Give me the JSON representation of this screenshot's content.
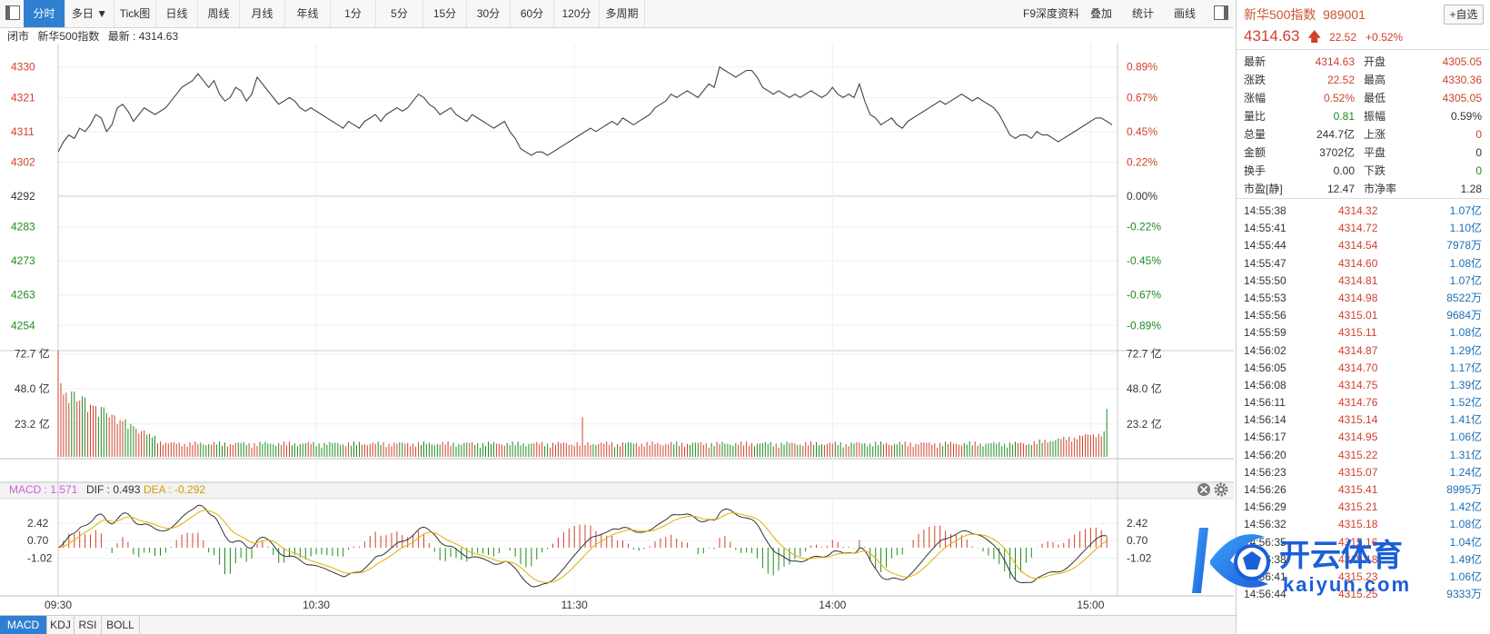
{
  "toolbar": {
    "items": [
      "分时",
      "多日 ▼",
      "Tick图",
      "日线",
      "周线",
      "月线",
      "年线",
      "1分",
      "5分",
      "15分",
      "30分",
      "60分",
      "120分",
      "多周期"
    ],
    "right_items": [
      "F9深度资料",
      "叠加",
      "统计",
      "画线"
    ]
  },
  "infobar": {
    "status": "闭市",
    "name": "新华500指数",
    "latest_label": "最新 : 4314.63"
  },
  "macd_legend": {
    "macd": "MACD : 1.571",
    "dif": "DIF : 0.493",
    "dea": "DEA : -0.292"
  },
  "bottom_tabs": [
    "MACD",
    "KDJ",
    "RSI",
    "BOLL"
  ],
  "quote": {
    "title": "新华500指数",
    "code": "989001",
    "add_label": "+自选",
    "price": "4314.63",
    "arrow": "🡅",
    "change": "22.52",
    "change_pct": "+0.52%",
    "rows": [
      {
        "l": "最新",
        "v": "4314.63",
        "vc": "red",
        "l2": "开盘",
        "v2": "4305.05",
        "v2c": "red"
      },
      {
        "l": "涨跌",
        "v": "22.52",
        "vc": "red",
        "l2": "最高",
        "v2": "4330.36",
        "v2c": "red"
      },
      {
        "l": "涨幅",
        "v": "0.52%",
        "vc": "red",
        "l2": "最低",
        "v2": "4305.05",
        "v2c": "red"
      },
      {
        "l": "量比",
        "v": "0.81",
        "vc": "green",
        "l2": "振幅",
        "v2": "0.59%",
        "v2c": "black"
      },
      {
        "l": "总量",
        "v": "244.7亿",
        "vc": "black",
        "l2": "上涨",
        "v2": "0",
        "v2c": "red"
      },
      {
        "l": "金额",
        "v": "3702亿",
        "vc": "black",
        "l2": "平盘",
        "v2": "0",
        "v2c": "black"
      },
      {
        "l": "换手",
        "v": "0.00",
        "vc": "black",
        "l2": "下跌",
        "v2": "0",
        "v2c": "green"
      },
      {
        "l": "市盈[静]",
        "v": "12.47",
        "vc": "black",
        "l2": "市净率",
        "v2": "1.28",
        "v2c": "black"
      }
    ]
  },
  "ticks": [
    {
      "t": "14:55:38",
      "p": "4314.32",
      "v": "1.07亿"
    },
    {
      "t": "14:55:41",
      "p": "4314.72",
      "v": "1.10亿"
    },
    {
      "t": "14:55:44",
      "p": "4314.54",
      "v": "7978万"
    },
    {
      "t": "14:55:47",
      "p": "4314.60",
      "v": "1.08亿"
    },
    {
      "t": "14:55:50",
      "p": "4314.81",
      "v": "1.07亿"
    },
    {
      "t": "14:55:53",
      "p": "4314.98",
      "v": "8522万"
    },
    {
      "t": "14:55:56",
      "p": "4315.01",
      "v": "9684万"
    },
    {
      "t": "14:55:59",
      "p": "4315.11",
      "v": "1.08亿"
    },
    {
      "t": "14:56:02",
      "p": "4314.87",
      "v": "1.29亿"
    },
    {
      "t": "14:56:05",
      "p": "4314.70",
      "v": "1.17亿"
    },
    {
      "t": "14:56:08",
      "p": "4314.75",
      "v": "1.39亿"
    },
    {
      "t": "14:56:11",
      "p": "4314.76",
      "v": "1.52亿"
    },
    {
      "t": "14:56:14",
      "p": "4315.14",
      "v": "1.41亿"
    },
    {
      "t": "14:56:17",
      "p": "4314.95",
      "v": "1.06亿"
    },
    {
      "t": "14:56:20",
      "p": "4315.22",
      "v": "1.31亿"
    },
    {
      "t": "14:56:23",
      "p": "4315.07",
      "v": "1.24亿"
    },
    {
      "t": "14:56:26",
      "p": "4315.41",
      "v": "8995万"
    },
    {
      "t": "14:56:29",
      "p": "4315.21",
      "v": "1.42亿"
    },
    {
      "t": "14:56:32",
      "p": "4315.18",
      "v": "1.08亿"
    },
    {
      "t": "14:56:35",
      "p": "4315.16",
      "v": "1.04亿"
    },
    {
      "t": "14:56:38",
      "p": "4315.18",
      "v": "1.49亿"
    },
    {
      "t": "14:56:41",
      "p": "4315.23",
      "v": "1.06亿"
    },
    {
      "t": "14:56:44",
      "p": "4315.25",
      "v": "9333万"
    }
  ],
  "watermark": {
    "cn": "开云体育",
    "en": "kaiyun.com"
  },
  "colors": {
    "up": "#d0402c",
    "down": "#1f8a1f",
    "accent": "#2f80d1",
    "dif": "#333333",
    "dea": "#e0b000"
  },
  "chart_data": {
    "type": "line",
    "prev_close": 4292,
    "price": {
      "ylim": [
        4249,
        4335
      ],
      "ticks": [
        {
          "v": 4330,
          "pct": "0.89%",
          "label": "4330"
        },
        {
          "v": 4321,
          "pct": "0.67%",
          "label": "4321"
        },
        {
          "v": 4311,
          "pct": "0.45%",
          "label": "4311"
        },
        {
          "v": 4302,
          "pct": "0.22%",
          "label": "4302"
        },
        {
          "v": 4292,
          "pct": "0.00%",
          "label": "4292"
        },
        {
          "v": 4283,
          "pct": "-0.22%",
          "label": "4283"
        },
        {
          "v": 4273,
          "pct": "-0.45%",
          "label": "4273"
        },
        {
          "v": 4263,
          "pct": "-0.67%",
          "label": "4263"
        },
        {
          "v": 4254,
          "pct": "-0.89%",
          "label": "4254"
        }
      ],
      "points": [
        [
          0,
          4305
        ],
        [
          2,
          4308
        ],
        [
          4,
          4310
        ],
        [
          6,
          4309
        ],
        [
          8,
          4312
        ],
        [
          10,
          4311
        ],
        [
          12,
          4313
        ],
        [
          14,
          4316
        ],
        [
          16,
          4315
        ],
        [
          18,
          4311
        ],
        [
          20,
          4313
        ],
        [
          22,
          4318
        ],
        [
          24,
          4319
        ],
        [
          26,
          4317
        ],
        [
          28,
          4314
        ],
        [
          30,
          4316
        ],
        [
          32,
          4318
        ],
        [
          34,
          4317
        ],
        [
          36,
          4316
        ],
        [
          38,
          4317
        ],
        [
          40,
          4318
        ],
        [
          42,
          4320
        ],
        [
          44,
          4322
        ],
        [
          46,
          4324
        ],
        [
          48,
          4325
        ],
        [
          50,
          4326
        ],
        [
          52,
          4328
        ],
        [
          54,
          4326
        ],
        [
          56,
          4324
        ],
        [
          58,
          4326
        ],
        [
          60,
          4322
        ],
        [
          62,
          4320
        ],
        [
          64,
          4321
        ],
        [
          66,
          4324
        ],
        [
          68,
          4323
        ],
        [
          70,
          4320
        ],
        [
          72,
          4322
        ],
        [
          74,
          4327
        ],
        [
          76,
          4325
        ],
        [
          78,
          4323
        ],
        [
          80,
          4321
        ],
        [
          82,
          4319
        ],
        [
          84,
          4320
        ],
        [
          86,
          4321
        ],
        [
          88,
          4320
        ],
        [
          90,
          4318
        ],
        [
          92,
          4317
        ],
        [
          94,
          4318
        ],
        [
          96,
          4317
        ],
        [
          98,
          4316
        ],
        [
          100,
          4315
        ],
        [
          102,
          4314
        ],
        [
          104,
          4313
        ],
        [
          106,
          4312
        ],
        [
          108,
          4314
        ],
        [
          110,
          4313
        ],
        [
          112,
          4312
        ],
        [
          114,
          4314
        ],
        [
          116,
          4315
        ],
        [
          118,
          4316
        ],
        [
          120,
          4314
        ],
        [
          122,
          4316
        ],
        [
          124,
          4317
        ],
        [
          126,
          4318
        ],
        [
          128,
          4317
        ],
        [
          130,
          4318
        ],
        [
          132,
          4320
        ],
        [
          134,
          4322
        ],
        [
          136,
          4321
        ],
        [
          138,
          4319
        ],
        [
          140,
          4318
        ],
        [
          142,
          4316
        ],
        [
          144,
          4317
        ],
        [
          146,
          4318
        ],
        [
          148,
          4316
        ],
        [
          150,
          4315
        ],
        [
          152,
          4314
        ],
        [
          154,
          4316
        ],
        [
          156,
          4315
        ],
        [
          158,
          4314
        ],
        [
          160,
          4313
        ],
        [
          162,
          4312
        ],
        [
          164,
          4313
        ],
        [
          166,
          4314
        ],
        [
          168,
          4311
        ],
        [
          170,
          4309
        ],
        [
          172,
          4306
        ],
        [
          174,
          4305
        ],
        [
          176,
          4304
        ],
        [
          178,
          4305
        ],
        [
          180,
          4305
        ],
        [
          182,
          4304
        ],
        [
          184,
          4305
        ],
        [
          186,
          4306
        ],
        [
          188,
          4307
        ],
        [
          190,
          4308
        ],
        [
          192,
          4309
        ],
        [
          194,
          4310
        ],
        [
          196,
          4311
        ],
        [
          198,
          4312
        ],
        [
          200,
          4311
        ],
        [
          202,
          4312
        ],
        [
          204,
          4313
        ],
        [
          206,
          4314
        ],
        [
          208,
          4313
        ],
        [
          210,
          4315
        ],
        [
          212,
          4314
        ],
        [
          214,
          4313
        ],
        [
          216,
          4314
        ],
        [
          218,
          4315
        ],
        [
          220,
          4316
        ],
        [
          222,
          4318
        ],
        [
          224,
          4319
        ],
        [
          226,
          4320
        ],
        [
          228,
          4322
        ],
        [
          230,
          4321
        ],
        [
          232,
          4322
        ],
        [
          234,
          4323
        ],
        [
          236,
          4322
        ],
        [
          238,
          4321
        ],
        [
          240,
          4323
        ],
        [
          242,
          4325
        ],
        [
          244,
          4324
        ],
        [
          246,
          4330
        ],
        [
          248,
          4329
        ],
        [
          250,
          4328
        ],
        [
          252,
          4327
        ],
        [
          254,
          4328
        ],
        [
          256,
          4329
        ],
        [
          258,
          4329
        ],
        [
          260,
          4327
        ],
        [
          262,
          4324
        ],
        [
          264,
          4323
        ],
        [
          266,
          4322
        ],
        [
          268,
          4323
        ],
        [
          270,
          4322
        ],
        [
          272,
          4321
        ],
        [
          274,
          4322
        ],
        [
          276,
          4321
        ],
        [
          278,
          4322
        ],
        [
          280,
          4323
        ],
        [
          282,
          4322
        ],
        [
          284,
          4321
        ],
        [
          286,
          4322
        ],
        [
          288,
          4324
        ],
        [
          290,
          4322
        ],
        [
          292,
          4321
        ],
        [
          294,
          4322
        ],
        [
          296,
          4321
        ],
        [
          298,
          4325
        ],
        [
          300,
          4320
        ],
        [
          302,
          4316
        ],
        [
          304,
          4315
        ],
        [
          306,
          4313
        ],
        [
          308,
          4314
        ],
        [
          310,
          4315
        ],
        [
          312,
          4313
        ],
        [
          314,
          4312
        ],
        [
          316,
          4314
        ],
        [
          318,
          4315
        ],
        [
          320,
          4316
        ],
        [
          322,
          4317
        ],
        [
          324,
          4318
        ],
        [
          326,
          4319
        ],
        [
          328,
          4320
        ],
        [
          330,
          4319
        ],
        [
          332,
          4320
        ],
        [
          334,
          4321
        ],
        [
          336,
          4322
        ],
        [
          338,
          4321
        ],
        [
          340,
          4320
        ],
        [
          342,
          4321
        ],
        [
          344,
          4320
        ],
        [
          346,
          4319
        ],
        [
          348,
          4318
        ],
        [
          350,
          4316
        ],
        [
          352,
          4313
        ],
        [
          354,
          4310
        ],
        [
          356,
          4309
        ],
        [
          358,
          4310
        ],
        [
          360,
          4310
        ],
        [
          362,
          4309
        ],
        [
          364,
          4311
        ],
        [
          366,
          4310
        ],
        [
          368,
          4310
        ],
        [
          370,
          4309
        ],
        [
          372,
          4308
        ],
        [
          374,
          4309
        ],
        [
          376,
          4310
        ],
        [
          378,
          4311
        ],
        [
          380,
          4312
        ],
        [
          382,
          4313
        ],
        [
          384,
          4314
        ],
        [
          386,
          4315
        ],
        [
          388,
          4315
        ],
        [
          390,
          4314
        ],
        [
          392,
          4313
        ]
      ]
    },
    "volume": {
      "ylim": [
        0,
        75
      ],
      "ticks": [
        {
          "v": 72.7,
          "label": "72.7 亿"
        },
        {
          "v": 48.0,
          "label": "48.0 亿"
        },
        {
          "v": 23.2,
          "label": "23.2 亿"
        }
      ],
      "unit": "亿"
    },
    "macd": {
      "ylim": [
        -4.5,
        4.5
      ],
      "ticks": [
        {
          "v": 2.42,
          "label": "2.42"
        },
        {
          "v": 0.7,
          "label": "0.70"
        },
        {
          "v": -1.02,
          "label": "-1.02"
        }
      ]
    },
    "x_labels": [
      {
        "i": 0,
        "label": "09:30"
      },
      {
        "i": 96,
        "label": "10:30"
      },
      {
        "i": 192,
        "label": "11:30"
      },
      {
        "i": 288,
        "label": "14:00"
      },
      {
        "i": 384,
        "label": "15:00"
      }
    ],
    "x_max": 394
  }
}
